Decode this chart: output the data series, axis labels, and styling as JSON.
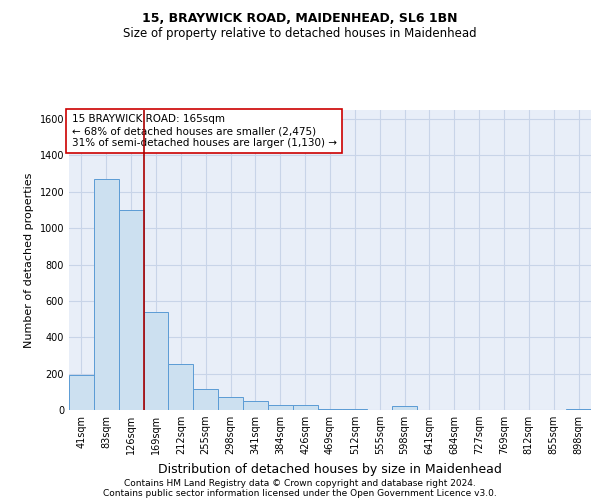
{
  "title": "15, BRAYWICK ROAD, MAIDENHEAD, SL6 1BN",
  "subtitle": "Size of property relative to detached houses in Maidenhead",
  "xlabel": "Distribution of detached houses by size in Maidenhead",
  "ylabel": "Number of detached properties",
  "footer_line1": "Contains HM Land Registry data © Crown copyright and database right 2024.",
  "footer_line2": "Contains public sector information licensed under the Open Government Licence v3.0.",
  "bar_labels": [
    "41sqm",
    "83sqm",
    "126sqm",
    "169sqm",
    "212sqm",
    "255sqm",
    "298sqm",
    "341sqm",
    "384sqm",
    "426sqm",
    "469sqm",
    "512sqm",
    "555sqm",
    "598sqm",
    "641sqm",
    "684sqm",
    "727sqm",
    "769sqm",
    "812sqm",
    "855sqm",
    "898sqm"
  ],
  "bar_values": [
    190,
    1270,
    1100,
    540,
    255,
    115,
    70,
    50,
    30,
    25,
    5,
    5,
    0,
    20,
    0,
    0,
    0,
    0,
    0,
    0,
    5
  ],
  "bar_color": "#cce0f0",
  "bar_edge_color": "#5b9bd5",
  "ylim": [
    0,
    1650
  ],
  "yticks": [
    0,
    200,
    400,
    600,
    800,
    1000,
    1200,
    1400,
    1600
  ],
  "property_line_x": 2.5,
  "property_line_color": "#aa0000",
  "annotation_text": "15 BRAYWICK ROAD: 165sqm\n← 68% of detached houses are smaller (2,475)\n31% of semi-detached houses are larger (1,130) →",
  "annotation_box_color": "white",
  "annotation_box_edge": "#cc0000",
  "grid_color": "#c8d4e8",
  "background_color": "#e8eef8",
  "title_fontsize": 9,
  "subtitle_fontsize": 8.5,
  "ylabel_fontsize": 8,
  "xlabel_fontsize": 9,
  "tick_fontsize": 7,
  "annotation_fontsize": 7.5,
  "footer_fontsize": 6.5
}
